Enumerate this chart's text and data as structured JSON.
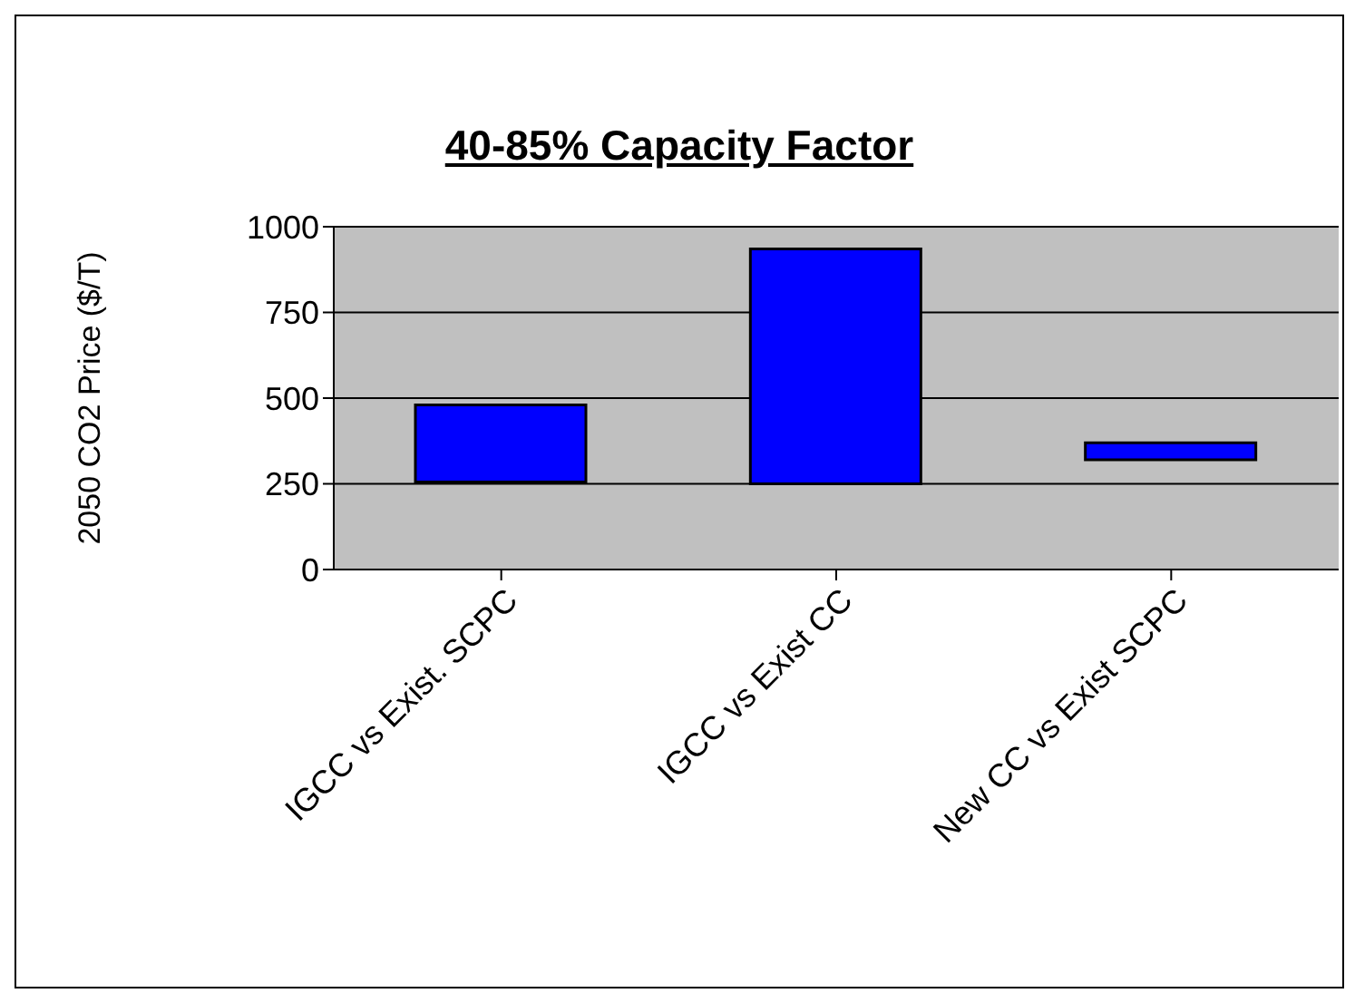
{
  "chart_data": {
    "type": "bar",
    "title": "40-85% Capacity Factor",
    "ylabel": "2050 CO2 Price ($/T)",
    "categories": [
      "IGCC vs Exist. SCPC",
      "IGCC vs Exist CC",
      "New CC vs Exist SCPC"
    ],
    "base": [
      255,
      250,
      320
    ],
    "values": [
      225,
      685,
      50
    ],
    "color": "#0000ff",
    "ylim": [
      0,
      1000
    ],
    "yticks": [
      0,
      250,
      500,
      750,
      1000
    ],
    "grid": "y"
  }
}
